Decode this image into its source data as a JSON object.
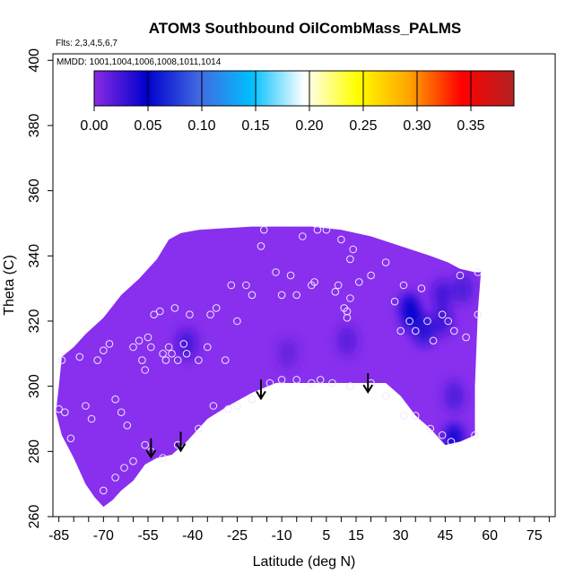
{
  "chart_data": {
    "type": "heatmap",
    "title": "ATOM3 Southbound OilCombMass_PALMS",
    "subtitle_flights": "Flts: 2,3,4,5,6,7",
    "subtitle_dates": "MMDD: 1001,1004,1006,1008,1011,1014",
    "xlabel": "Latitude (deg N)",
    "ylabel": "Theta (C)",
    "xlim": [
      -87,
      82
    ],
    "ylim": [
      260,
      402
    ],
    "x_ticks": [
      -85,
      -70,
      -55,
      -40,
      -25,
      -10,
      5,
      15,
      30,
      45,
      60,
      75
    ],
    "x_tick_labels": [
      "-85",
      "-70",
      "-55",
      "-40",
      "-25",
      "-10",
      "5",
      "15",
      "30",
      "45",
      "60",
      "75"
    ],
    "x_minor_tick_step": 5,
    "y_ticks": [
      260,
      280,
      300,
      320,
      340,
      360,
      380,
      400
    ],
    "y_tick_labels": [
      "260",
      "280",
      "300",
      "320",
      "340",
      "360",
      "380",
      "400"
    ],
    "colorbar": {
      "min": 0,
      "max": 0.39,
      "tick_values": [
        0,
        0.05,
        0.1,
        0.15,
        0.2,
        0.25,
        0.3,
        0.35
      ],
      "tick_labels": [
        "0.00",
        "0.05",
        "0.10",
        "0.15",
        "0.20",
        "0.25",
        "0.30",
        "0.35"
      ],
      "colors": [
        "#8a2be2",
        "#0000cd",
        "#4169e1",
        "#00bfff",
        "#ffffff",
        "#ffff00",
        "#ffa500",
        "#ff0000",
        "#b22222"
      ]
    },
    "base_color": "#8830ee",
    "field_outline": [
      [
        -84,
        309
      ],
      [
        -80,
        312
      ],
      [
        -76,
        316
      ],
      [
        -70,
        321
      ],
      [
        -64,
        328
      ],
      [
        -58,
        333
      ],
      [
        -52,
        339
      ],
      [
        -48,
        345
      ],
      [
        -44,
        347
      ],
      [
        -38,
        348
      ],
      [
        -20,
        349
      ],
      [
        0,
        349
      ],
      [
        10,
        348
      ],
      [
        20,
        346
      ],
      [
        30,
        343
      ],
      [
        40,
        340
      ],
      [
        46,
        338
      ],
      [
        50,
        336
      ],
      [
        55,
        335
      ],
      [
        57,
        335
      ],
      [
        56,
        323
      ],
      [
        55,
        300
      ],
      [
        55,
        285
      ],
      [
        50,
        283
      ],
      [
        45,
        282
      ],
      [
        40,
        287
      ],
      [
        35,
        291
      ],
      [
        30,
        297
      ],
      [
        25,
        301
      ],
      [
        20,
        301
      ],
      [
        15,
        301
      ],
      [
        10,
        301
      ],
      [
        -5,
        301
      ],
      [
        -12,
        301
      ],
      [
        -20,
        298
      ],
      [
        -28,
        294
      ],
      [
        -35,
        290
      ],
      [
        -42,
        283
      ],
      [
        -47,
        279
      ],
      [
        -52,
        278
      ],
      [
        -56,
        276
      ],
      [
        -60,
        271
      ],
      [
        -64,
        268
      ],
      [
        -67,
        265
      ],
      [
        -70,
        263
      ],
      [
        -73,
        266
      ],
      [
        -76,
        270
      ],
      [
        -80,
        278
      ],
      [
        -84,
        285
      ],
      [
        -86,
        292
      ],
      [
        -85,
        300
      ]
    ],
    "blobs": [
      {
        "lat": 34,
        "theta": 321,
        "value": 0.055
      },
      {
        "lat": 33,
        "theta": 324,
        "value": 0.05
      },
      {
        "lat": 38,
        "theta": 317,
        "value": 0.04
      },
      {
        "lat": 44,
        "theta": 320,
        "value": 0.03
      },
      {
        "lat": 44,
        "theta": 328,
        "value": 0.03
      },
      {
        "lat": 51,
        "theta": 330,
        "value": 0.025
      },
      {
        "lat": 48,
        "theta": 297,
        "value": 0.025
      },
      {
        "lat": 48,
        "theta": 284,
        "value": 0.05
      },
      {
        "lat": -42,
        "theta": 313,
        "value": 0.03
      },
      {
        "lat": 12,
        "theta": 314,
        "value": 0.02
      },
      {
        "lat": -8,
        "theta": 310,
        "value": 0.015
      }
    ],
    "observations": [
      [
        -85,
        293
      ],
      [
        -84,
        308
      ],
      [
        -83,
        292
      ],
      [
        -81,
        284
      ],
      [
        -78,
        309
      ],
      [
        -76,
        294
      ],
      [
        -74,
        290
      ],
      [
        -72,
        308
      ],
      [
        -70,
        311
      ],
      [
        -68,
        313
      ],
      [
        -66,
        296
      ],
      [
        -64,
        292
      ],
      [
        -62,
        288
      ],
      [
        -60,
        312
      ],
      [
        -58,
        314
      ],
      [
        -57,
        308
      ],
      [
        -56,
        305
      ],
      [
        -55,
        315
      ],
      [
        -54,
        312
      ],
      [
        -53,
        322
      ],
      [
        -51,
        323
      ],
      [
        -50,
        310
      ],
      [
        -49,
        308
      ],
      [
        -48,
        312
      ],
      [
        -47,
        310
      ],
      [
        -46,
        324
      ],
      [
        -45,
        308
      ],
      [
        -43,
        313
      ],
      [
        -42,
        310
      ],
      [
        -41,
        322
      ],
      [
        -38,
        308
      ],
      [
        -35,
        312
      ],
      [
        -34,
        322
      ],
      [
        -32,
        324
      ],
      [
        -29,
        308
      ],
      [
        -27,
        331
      ],
      [
        -25,
        320
      ],
      [
        -22,
        331
      ],
      [
        -20,
        328
      ],
      [
        -17,
        343
      ],
      [
        -16,
        348
      ],
      [
        -12,
        335
      ],
      [
        -10,
        328
      ],
      [
        -7,
        334
      ],
      [
        -5,
        328
      ],
      [
        -3,
        346
      ],
      [
        0,
        331
      ],
      [
        1,
        332
      ],
      [
        2,
        348
      ],
      [
        5,
        348
      ],
      [
        8,
        329
      ],
      [
        9,
        331
      ],
      [
        10,
        345
      ],
      [
        11,
        324
      ],
      [
        12,
        323
      ],
      [
        12,
        321
      ],
      [
        13,
        327
      ],
      [
        13,
        339
      ],
      [
        14,
        342
      ],
      [
        16,
        332
      ],
      [
        20,
        334
      ],
      [
        25,
        338
      ],
      [
        28,
        326
      ],
      [
        30,
        317
      ],
      [
        31,
        331
      ],
      [
        33,
        320
      ],
      [
        35,
        317
      ],
      [
        37,
        330
      ],
      [
        39,
        320
      ],
      [
        41,
        314
      ],
      [
        44,
        322
      ],
      [
        46,
        320
      ],
      [
        48,
        317
      ],
      [
        50,
        334
      ],
      [
        52,
        315
      ],
      [
        56,
        335
      ],
      [
        -56,
        282
      ],
      [
        -54,
        280
      ],
      [
        -50,
        278
      ],
      [
        -45,
        282
      ],
      [
        -38,
        287
      ],
      [
        -33,
        294
      ],
      [
        -28,
        293
      ],
      [
        -25,
        294
      ],
      [
        -20,
        296
      ],
      [
        -14,
        301
      ],
      [
        -10,
        302
      ],
      [
        -5,
        302
      ],
      [
        0,
        301
      ],
      [
        3,
        302
      ],
      [
        7,
        301
      ],
      [
        13,
        300
      ],
      [
        20,
        301
      ],
      [
        25,
        297
      ],
      [
        31,
        291
      ],
      [
        35,
        291
      ],
      [
        40,
        287
      ],
      [
        44,
        285
      ],
      [
        47,
        283
      ],
      [
        55,
        285
      ],
      [
        56,
        322
      ],
      [
        -60,
        277
      ],
      [
        -63,
        275
      ],
      [
        -66,
        272
      ],
      [
        -70,
        268
      ]
    ],
    "arrows": [
      {
        "lat": -54,
        "theta": 284
      },
      {
        "lat": -44,
        "theta": 286
      },
      {
        "lat": -17,
        "theta": 302
      },
      {
        "lat": 19,
        "theta": 304
      }
    ]
  }
}
